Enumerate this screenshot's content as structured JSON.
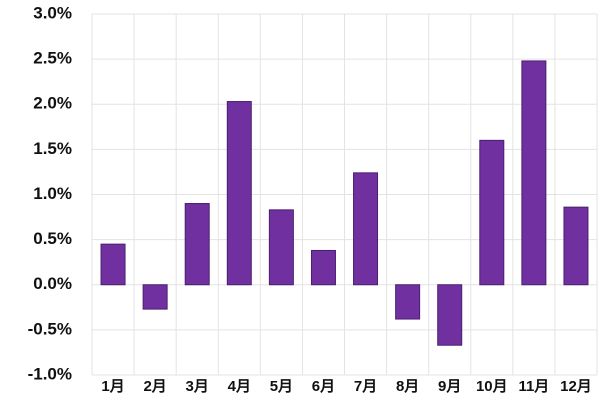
{
  "chart_data": {
    "type": "bar",
    "categories": [
      "1月",
      "2月",
      "3月",
      "4月",
      "5月",
      "6月",
      "7月",
      "8月",
      "9月",
      "10月",
      "11月",
      "12月"
    ],
    "values": [
      0.45,
      -0.27,
      0.9,
      2.03,
      0.83,
      0.38,
      1.24,
      -0.38,
      -0.67,
      1.6,
      2.48,
      0.86
    ],
    "color": "#7030a0",
    "ylim": [
      -1.0,
      3.0
    ],
    "yticks": [
      {
        "value": -1.0,
        "label": "-1.0%"
      },
      {
        "value": -0.5,
        "label": "-0.5%"
      },
      {
        "value": 0,
        "label": "0.0%"
      },
      {
        "value": 0.5,
        "label": "0.5%"
      },
      {
        "value": 1.0,
        "label": "1.0%"
      },
      {
        "value": 1.5,
        "label": "1.5%"
      },
      {
        "value": 2.0,
        "label": "2.0%"
      },
      {
        "value": 2.5,
        "label": "2.5%"
      },
      {
        "value": 3.0,
        "label": "3.0%"
      }
    ],
    "grid": true
  }
}
